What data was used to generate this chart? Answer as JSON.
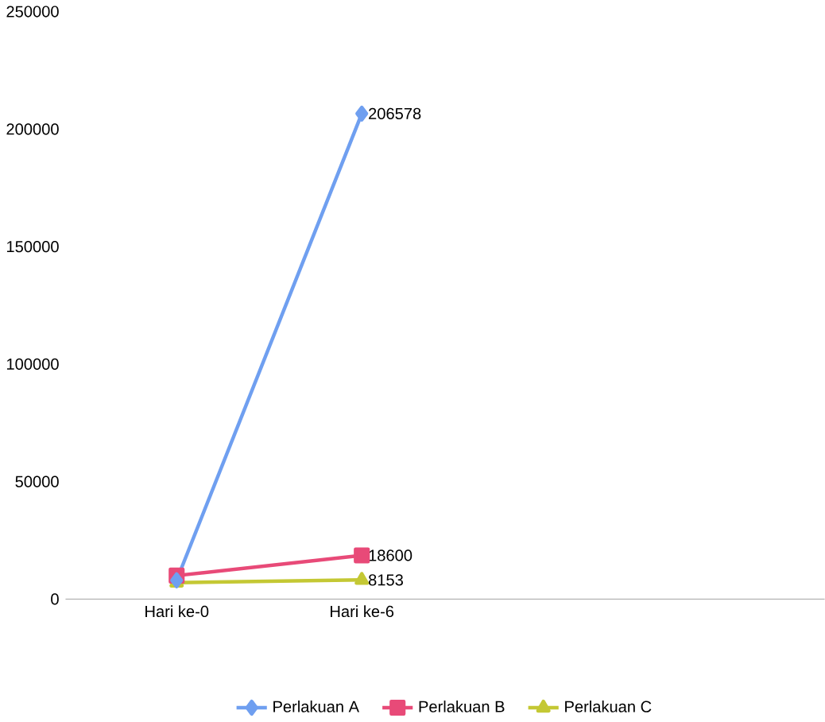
{
  "chart_data": {
    "type": "line",
    "categories": [
      "Hari ke-0",
      "Hari ke-6",
      null,
      null
    ],
    "series": [
      {
        "name": "Perlakuan A",
        "color": "#6f9ff0",
        "marker": "diamond",
        "values": [
          8000,
          206578,
          null,
          null
        ],
        "value_labels": [
          null,
          "206578",
          null,
          null
        ]
      },
      {
        "name": "Perlakuan B",
        "color": "#e84a78",
        "marker": "square",
        "values": [
          10000,
          18600,
          null,
          null
        ],
        "value_labels": [
          null,
          "18600",
          null,
          null
        ]
      },
      {
        "name": "Perlakuan C",
        "color": "#c4c834",
        "marker": "triangle",
        "values": [
          7000,
          8153,
          null,
          null
        ],
        "value_labels": [
          null,
          "8153",
          null,
          null
        ]
      }
    ],
    "ylim": [
      0,
      250000
    ],
    "yticks": [
      0,
      50000,
      100000,
      150000,
      200000,
      250000
    ],
    "grid": false,
    "legend": "bottom"
  }
}
